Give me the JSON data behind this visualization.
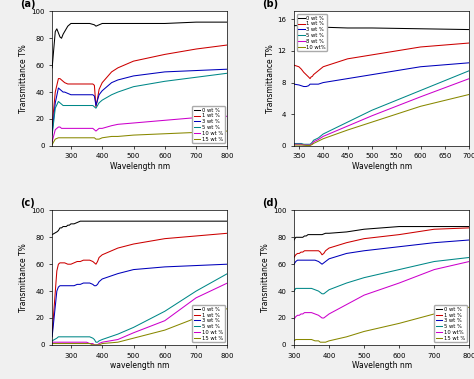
{
  "panel_a": {
    "label": "(a)",
    "xlabel": "Wavelength nm",
    "ylabel": "Transmittance T%",
    "xlim": [
      240,
      800
    ],
    "ylim": [
      0,
      100
    ],
    "legend_labels": [
      "0 wt %",
      "1 wt %",
      "3 wt %",
      "5 wt %",
      "10 wt %",
      "15 wt %"
    ],
    "colors": [
      "#000000",
      "#cc0000",
      "#0000bb",
      "#008888",
      "#cc00cc",
      "#888800"
    ],
    "legend_loc": "lower right",
    "curves": [
      {
        "x": [
          240,
          250,
          255,
          260,
          265,
          270,
          275,
          280,
          285,
          290,
          295,
          300,
          320,
          340,
          360,
          375,
          380,
          390,
          400,
          450,
          500,
          600,
          700,
          800
        ],
        "y": [
          58,
          85,
          87,
          84,
          81,
          80,
          83,
          85,
          87,
          89,
          90,
          91,
          91,
          91,
          91,
          90,
          89,
          90,
          91,
          91,
          91,
          91,
          92,
          92
        ]
      },
      {
        "x": [
          240,
          250,
          260,
          265,
          270,
          275,
          280,
          290,
          300,
          320,
          340,
          360,
          370,
          375,
          380,
          385,
          390,
          400,
          430,
          450,
          500,
          600,
          700,
          800
        ],
        "y": [
          15,
          40,
          50,
          50,
          49,
          48,
          47,
          46,
          46,
          46,
          46,
          46,
          46,
          45,
          29,
          35,
          42,
          47,
          55,
          58,
          63,
          68,
          72,
          75
        ]
      },
      {
        "x": [
          240,
          250,
          260,
          265,
          270,
          275,
          280,
          290,
          300,
          320,
          340,
          360,
          370,
          375,
          380,
          385,
          390,
          400,
          430,
          450,
          500,
          600,
          700,
          800
        ],
        "y": [
          10,
          32,
          43,
          42,
          41,
          40,
          40,
          39,
          38,
          38,
          38,
          38,
          38,
          37,
          30,
          34,
          38,
          41,
          47,
          49,
          52,
          55,
          56,
          57
        ]
      },
      {
        "x": [
          240,
          250,
          260,
          265,
          270,
          275,
          280,
          290,
          300,
          320,
          340,
          360,
          370,
          375,
          380,
          385,
          390,
          400,
          430,
          450,
          500,
          600,
          700,
          800
        ],
        "y": [
          8,
          28,
          33,
          32,
          31,
          30,
          30,
          30,
          30,
          30,
          30,
          30,
          30,
          29,
          28,
          30,
          32,
          34,
          38,
          40,
          44,
          48,
          51,
          54
        ]
      },
      {
        "x": [
          240,
          250,
          260,
          265,
          270,
          275,
          280,
          290,
          300,
          320,
          340,
          360,
          370,
          375,
          380,
          385,
          390,
          400,
          430,
          450,
          500,
          600,
          700,
          800
        ],
        "y": [
          3,
          12,
          14,
          14,
          13,
          13,
          13,
          13,
          13,
          13,
          13,
          13,
          13,
          12,
          11,
          12,
          13,
          13,
          15,
          16,
          17,
          19,
          21,
          22
        ]
      },
      {
        "x": [
          240,
          250,
          260,
          265,
          270,
          275,
          280,
          290,
          300,
          320,
          340,
          360,
          370,
          375,
          380,
          385,
          390,
          400,
          430,
          450,
          500,
          600,
          700,
          800
        ],
        "y": [
          1,
          5,
          6,
          6,
          6,
          6,
          6,
          6,
          6,
          6,
          6,
          6,
          6,
          6,
          5,
          5,
          5,
          6,
          7,
          7,
          8,
          9,
          10,
          11
        ]
      }
    ]
  },
  "panel_b": {
    "label": "(b)",
    "xlabel": "Wavelength nm",
    "ylabel": "Transmittance T%",
    "xlim": [
      340,
      700
    ],
    "ylim": [
      0,
      17
    ],
    "yticks": [
      0,
      4,
      8,
      12,
      16
    ],
    "legend_labels": [
      "0 wt %",
      "1 wt %",
      "3 wt %",
      "5 wt %",
      "8 wt %",
      "10 wt%"
    ],
    "colors": [
      "#000000",
      "#cc0000",
      "#0000bb",
      "#008888",
      "#cc00cc",
      "#888800"
    ],
    "legend_loc": "upper left",
    "curves": [
      {
        "x": [
          340,
          350,
          355,
          360,
          365,
          370,
          375,
          380,
          390,
          400,
          450,
          500,
          600,
          700
        ],
        "y": [
          15.2,
          15.2,
          15.1,
          15.1,
          15.1,
          15.0,
          15.0,
          15.0,
          15.0,
          15.0,
          14.9,
          14.9,
          14.8,
          14.7
        ]
      },
      {
        "x": [
          340,
          350,
          355,
          360,
          365,
          370,
          373,
          375,
          378,
          380,
          390,
          400,
          450,
          500,
          600,
          700
        ],
        "y": [
          10.2,
          10.0,
          9.7,
          9.3,
          9.0,
          8.7,
          8.5,
          8.7,
          8.8,
          9.0,
          9.5,
          10.0,
          11.0,
          11.5,
          12.5,
          13.0
        ]
      },
      {
        "x": [
          340,
          350,
          355,
          360,
          365,
          370,
          373,
          375,
          378,
          380,
          390,
          400,
          450,
          500,
          600,
          700
        ],
        "y": [
          7.8,
          7.7,
          7.6,
          7.5,
          7.5,
          7.6,
          7.8,
          7.8,
          7.8,
          7.8,
          7.8,
          8.0,
          8.5,
          9.0,
          10.0,
          10.5
        ]
      },
      {
        "x": [
          340,
          350,
          355,
          360,
          365,
          370,
          373,
          375,
          378,
          380,
          390,
          400,
          450,
          500,
          600,
          700
        ],
        "y": [
          0.3,
          0.3,
          0.3,
          0.2,
          0.2,
          0.2,
          0.2,
          0.3,
          0.5,
          0.7,
          1.0,
          1.5,
          3.0,
          4.5,
          7.0,
          9.5
        ]
      },
      {
        "x": [
          340,
          350,
          355,
          360,
          365,
          370,
          373,
          375,
          378,
          380,
          390,
          400,
          450,
          500,
          600,
          700
        ],
        "y": [
          0.2,
          0.2,
          0.2,
          0.1,
          0.1,
          0.1,
          0.1,
          0.2,
          0.3,
          0.5,
          0.8,
          1.2,
          2.5,
          3.8,
          6.2,
          8.5
        ]
      },
      {
        "x": [
          340,
          350,
          355,
          360,
          365,
          370,
          373,
          375,
          378,
          380,
          390,
          400,
          450,
          500,
          600,
          700
        ],
        "y": [
          0.1,
          0.1,
          0.1,
          0.1,
          0.05,
          0.05,
          0.05,
          0.1,
          0.2,
          0.3,
          0.6,
          0.9,
          2.0,
          3.0,
          5.0,
          6.5
        ]
      }
    ]
  },
  "panel_c": {
    "label": "(c)",
    "xlabel": "wavelength nm",
    "ylabel": "Transmittance T%",
    "xlim": [
      240,
      800
    ],
    "ylim": [
      0,
      100
    ],
    "legend_labels": [
      "0 wt %",
      "1 wt %",
      "3 wt %",
      "5 wt %",
      "10 wt %",
      "15 wt %"
    ],
    "colors": [
      "#000000",
      "#cc0000",
      "#0000bb",
      "#008888",
      "#cc00cc",
      "#888800"
    ],
    "legend_loc": "lower right",
    "curves": [
      {
        "x": [
          240,
          255,
          260,
          265,
          270,
          275,
          280,
          285,
          290,
          295,
          300,
          310,
          320,
          330,
          340,
          350,
          360,
          370,
          380,
          400,
          450,
          500,
          600,
          700,
          800
        ],
        "y": [
          82,
          84,
          85,
          87,
          87,
          88,
          88,
          88,
          89,
          89,
          90,
          90,
          91,
          92,
          92,
          92,
          92,
          92,
          92,
          92,
          92,
          92,
          92,
          92,
          92
        ]
      },
      {
        "x": [
          240,
          255,
          260,
          265,
          270,
          275,
          280,
          290,
          300,
          310,
          320,
          330,
          340,
          350,
          360,
          370,
          375,
          380,
          385,
          390,
          400,
          450,
          500,
          600,
          700,
          800
        ],
        "y": [
          8,
          55,
          60,
          61,
          61,
          61,
          61,
          60,
          60,
          61,
          62,
          62,
          63,
          63,
          63,
          62,
          61,
          60,
          62,
          65,
          67,
          72,
          75,
          79,
          81,
          83
        ]
      },
      {
        "x": [
          240,
          255,
          260,
          265,
          270,
          275,
          280,
          290,
          300,
          310,
          320,
          330,
          340,
          350,
          360,
          370,
          375,
          380,
          385,
          390,
          400,
          450,
          500,
          600,
          700,
          800
        ],
        "y": [
          6,
          40,
          43,
          44,
          44,
          44,
          44,
          44,
          44,
          44,
          45,
          45,
          46,
          46,
          46,
          45,
          44,
          44,
          45,
          47,
          49,
          53,
          56,
          58,
          59,
          60
        ]
      },
      {
        "x": [
          240,
          255,
          260,
          265,
          270,
          275,
          280,
          290,
          300,
          310,
          320,
          330,
          340,
          350,
          360,
          370,
          375,
          380,
          385,
          390,
          400,
          450,
          500,
          600,
          700,
          800
        ],
        "y": [
          3,
          5,
          6,
          6,
          6,
          6,
          6,
          6,
          6,
          6,
          6,
          6,
          6,
          6,
          6,
          5,
          4,
          2,
          2,
          3,
          4,
          8,
          13,
          25,
          40,
          53
        ]
      },
      {
        "x": [
          240,
          255,
          260,
          265,
          270,
          275,
          280,
          290,
          300,
          310,
          320,
          330,
          340,
          350,
          360,
          370,
          375,
          380,
          385,
          390,
          400,
          450,
          500,
          600,
          700,
          800
        ],
        "y": [
          2,
          2,
          2,
          2,
          2,
          2,
          2,
          2,
          2,
          2,
          2,
          2,
          2,
          2,
          1,
          1,
          0,
          0,
          0,
          1,
          2,
          4,
          9,
          18,
          35,
          46
        ]
      },
      {
        "x": [
          240,
          255,
          260,
          265,
          270,
          275,
          280,
          290,
          300,
          310,
          320,
          330,
          340,
          350,
          360,
          370,
          375,
          380,
          385,
          390,
          400,
          450,
          500,
          600,
          700,
          800
        ],
        "y": [
          1,
          1,
          1,
          1,
          1,
          1,
          1,
          1,
          1,
          1,
          1,
          1,
          1,
          1,
          1,
          0,
          0,
          0,
          0,
          0,
          1,
          2,
          5,
          11,
          20,
          27
        ]
      }
    ]
  },
  "panel_d": {
    "label": "(d)",
    "xlabel": "Wavelength nm",
    "ylabel": "Transmittance T%",
    "xlim": [
      300,
      800
    ],
    "ylim": [
      0,
      100
    ],
    "legend_labels": [
      "0 wt %",
      "1 wt %",
      "3 wt %",
      "5 wt %",
      "10 wt%",
      "15 wt %"
    ],
    "colors": [
      "#000000",
      "#cc0000",
      "#0000bb",
      "#008888",
      "#cc00cc",
      "#888800"
    ],
    "legend_loc": "lower right",
    "curves": [
      {
        "x": [
          300,
          305,
          310,
          315,
          320,
          325,
          330,
          335,
          340,
          350,
          360,
          370,
          380,
          390,
          400,
          450,
          500,
          600,
          700,
          800
        ],
        "y": [
          78,
          80,
          80,
          80,
          80,
          80,
          81,
          81,
          82,
          82,
          82,
          82,
          82,
          83,
          83,
          84,
          86,
          88,
          88,
          88
        ]
      },
      {
        "x": [
          300,
          305,
          310,
          315,
          320,
          325,
          330,
          335,
          340,
          350,
          360,
          370,
          375,
          380,
          385,
          390,
          400,
          450,
          500,
          600,
          700,
          800
        ],
        "y": [
          65,
          67,
          68,
          68,
          69,
          69,
          70,
          70,
          70,
          70,
          70,
          70,
          69,
          67,
          68,
          70,
          72,
          76,
          79,
          82,
          86,
          87
        ]
      },
      {
        "x": [
          300,
          305,
          310,
          315,
          320,
          325,
          330,
          335,
          340,
          350,
          360,
          370,
          375,
          380,
          385,
          390,
          400,
          450,
          500,
          600,
          700,
          800
        ],
        "y": [
          60,
          62,
          63,
          63,
          63,
          63,
          63,
          63,
          63,
          63,
          63,
          62,
          61,
          60,
          61,
          62,
          64,
          68,
          70,
          73,
          76,
          78
        ]
      },
      {
        "x": [
          300,
          305,
          310,
          315,
          320,
          325,
          330,
          335,
          340,
          350,
          360,
          370,
          375,
          380,
          385,
          390,
          400,
          450,
          500,
          600,
          700,
          800
        ],
        "y": [
          40,
          42,
          42,
          42,
          42,
          42,
          42,
          42,
          42,
          42,
          41,
          40,
          39,
          38,
          38,
          39,
          41,
          46,
          50,
          56,
          62,
          65
        ]
      },
      {
        "x": [
          300,
          305,
          310,
          315,
          320,
          325,
          330,
          335,
          340,
          350,
          360,
          370,
          375,
          380,
          385,
          390,
          400,
          450,
          500,
          600,
          700,
          800
        ],
        "y": [
          19,
          21,
          22,
          22,
          23,
          23,
          24,
          24,
          24,
          24,
          23,
          22,
          21,
          20,
          20,
          21,
          23,
          30,
          37,
          46,
          56,
          62
        ]
      },
      {
        "x": [
          300,
          305,
          310,
          315,
          320,
          325,
          330,
          335,
          340,
          350,
          360,
          370,
          375,
          380,
          385,
          390,
          400,
          450,
          500,
          600,
          700,
          800
        ],
        "y": [
          3,
          4,
          4,
          4,
          4,
          4,
          4,
          4,
          4,
          4,
          3,
          3,
          2,
          2,
          2,
          2,
          3,
          6,
          10,
          16,
          23,
          28
        ]
      }
    ]
  },
  "figure_bgcolor": "#f0f0f0"
}
